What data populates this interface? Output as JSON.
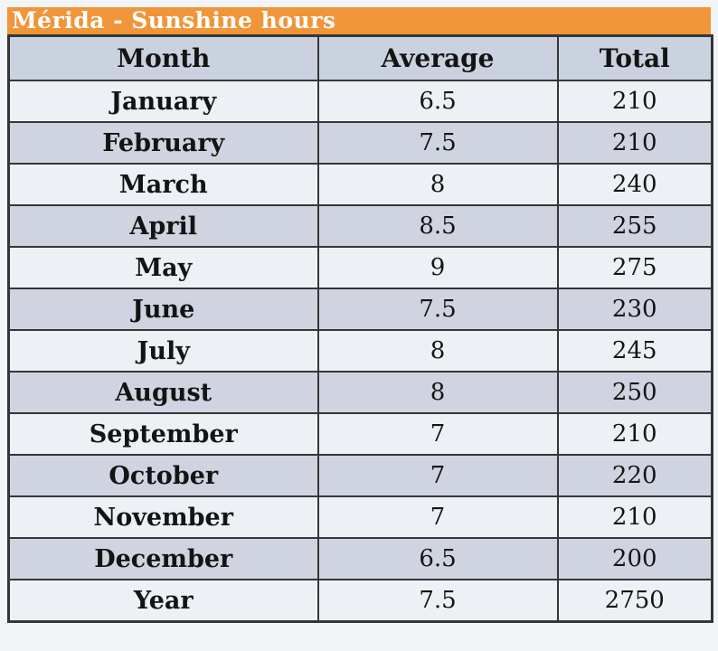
{
  "colors": {
    "accent_orange": "#F0953A",
    "header_bg": "#CBD2DF",
    "row_light": "#EDF1F6",
    "row_dark": "#CFD4E0",
    "border": "#363638",
    "page_bg": "#F2F5F8",
    "title_text": "#FFFFFF",
    "text": "#141414"
  },
  "chart_data": {
    "type": "table",
    "title": "Mérida - Sunshine hours",
    "columns": [
      "Month",
      "Average",
      "Total"
    ],
    "rows": [
      [
        "January",
        "6.5",
        "210"
      ],
      [
        "February",
        "7.5",
        "210"
      ],
      [
        "March",
        "8",
        "240"
      ],
      [
        "April",
        "8.5",
        "255"
      ],
      [
        "May",
        "9",
        "275"
      ],
      [
        "June",
        "7.5",
        "230"
      ],
      [
        "July",
        "8",
        "245"
      ],
      [
        "August",
        "8",
        "250"
      ],
      [
        "September",
        "7",
        "210"
      ],
      [
        "October",
        "7",
        "220"
      ],
      [
        "November",
        "7",
        "210"
      ],
      [
        "December",
        "6.5",
        "200"
      ],
      [
        "Year",
        "7.5",
        "2750"
      ]
    ]
  }
}
